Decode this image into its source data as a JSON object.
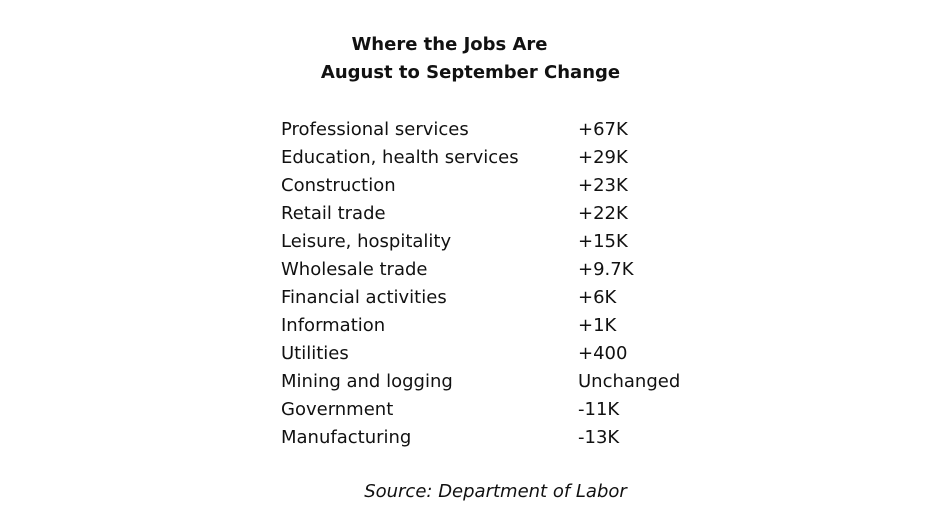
{
  "chart_data": {
    "type": "table",
    "title": "Where the Jobs Are",
    "subtitle": "August to September Change",
    "rows": [
      {
        "label": "Professional services",
        "value": "+67K"
      },
      {
        "label": "Education, health services",
        "value": "+29K"
      },
      {
        "label": "Construction",
        "value": "+23K"
      },
      {
        "label": "Retail trade",
        "value": "+22K"
      },
      {
        "label": "Leisure, hospitality",
        "value": "+15K"
      },
      {
        "label": "Wholesale trade",
        "value": "+9.7K"
      },
      {
        "label": "Financial activities",
        "value": "+6K"
      },
      {
        "label": "Information",
        "value": "+1K"
      },
      {
        "label": "Utilities",
        "value": "+400"
      },
      {
        "label": "Mining and logging",
        "value": "Unchanged"
      },
      {
        "label": "Government",
        "value": "-11K"
      },
      {
        "label": "Manufacturing",
        "value": "-13K"
      }
    ],
    "source": "Source: Department of Labor"
  }
}
